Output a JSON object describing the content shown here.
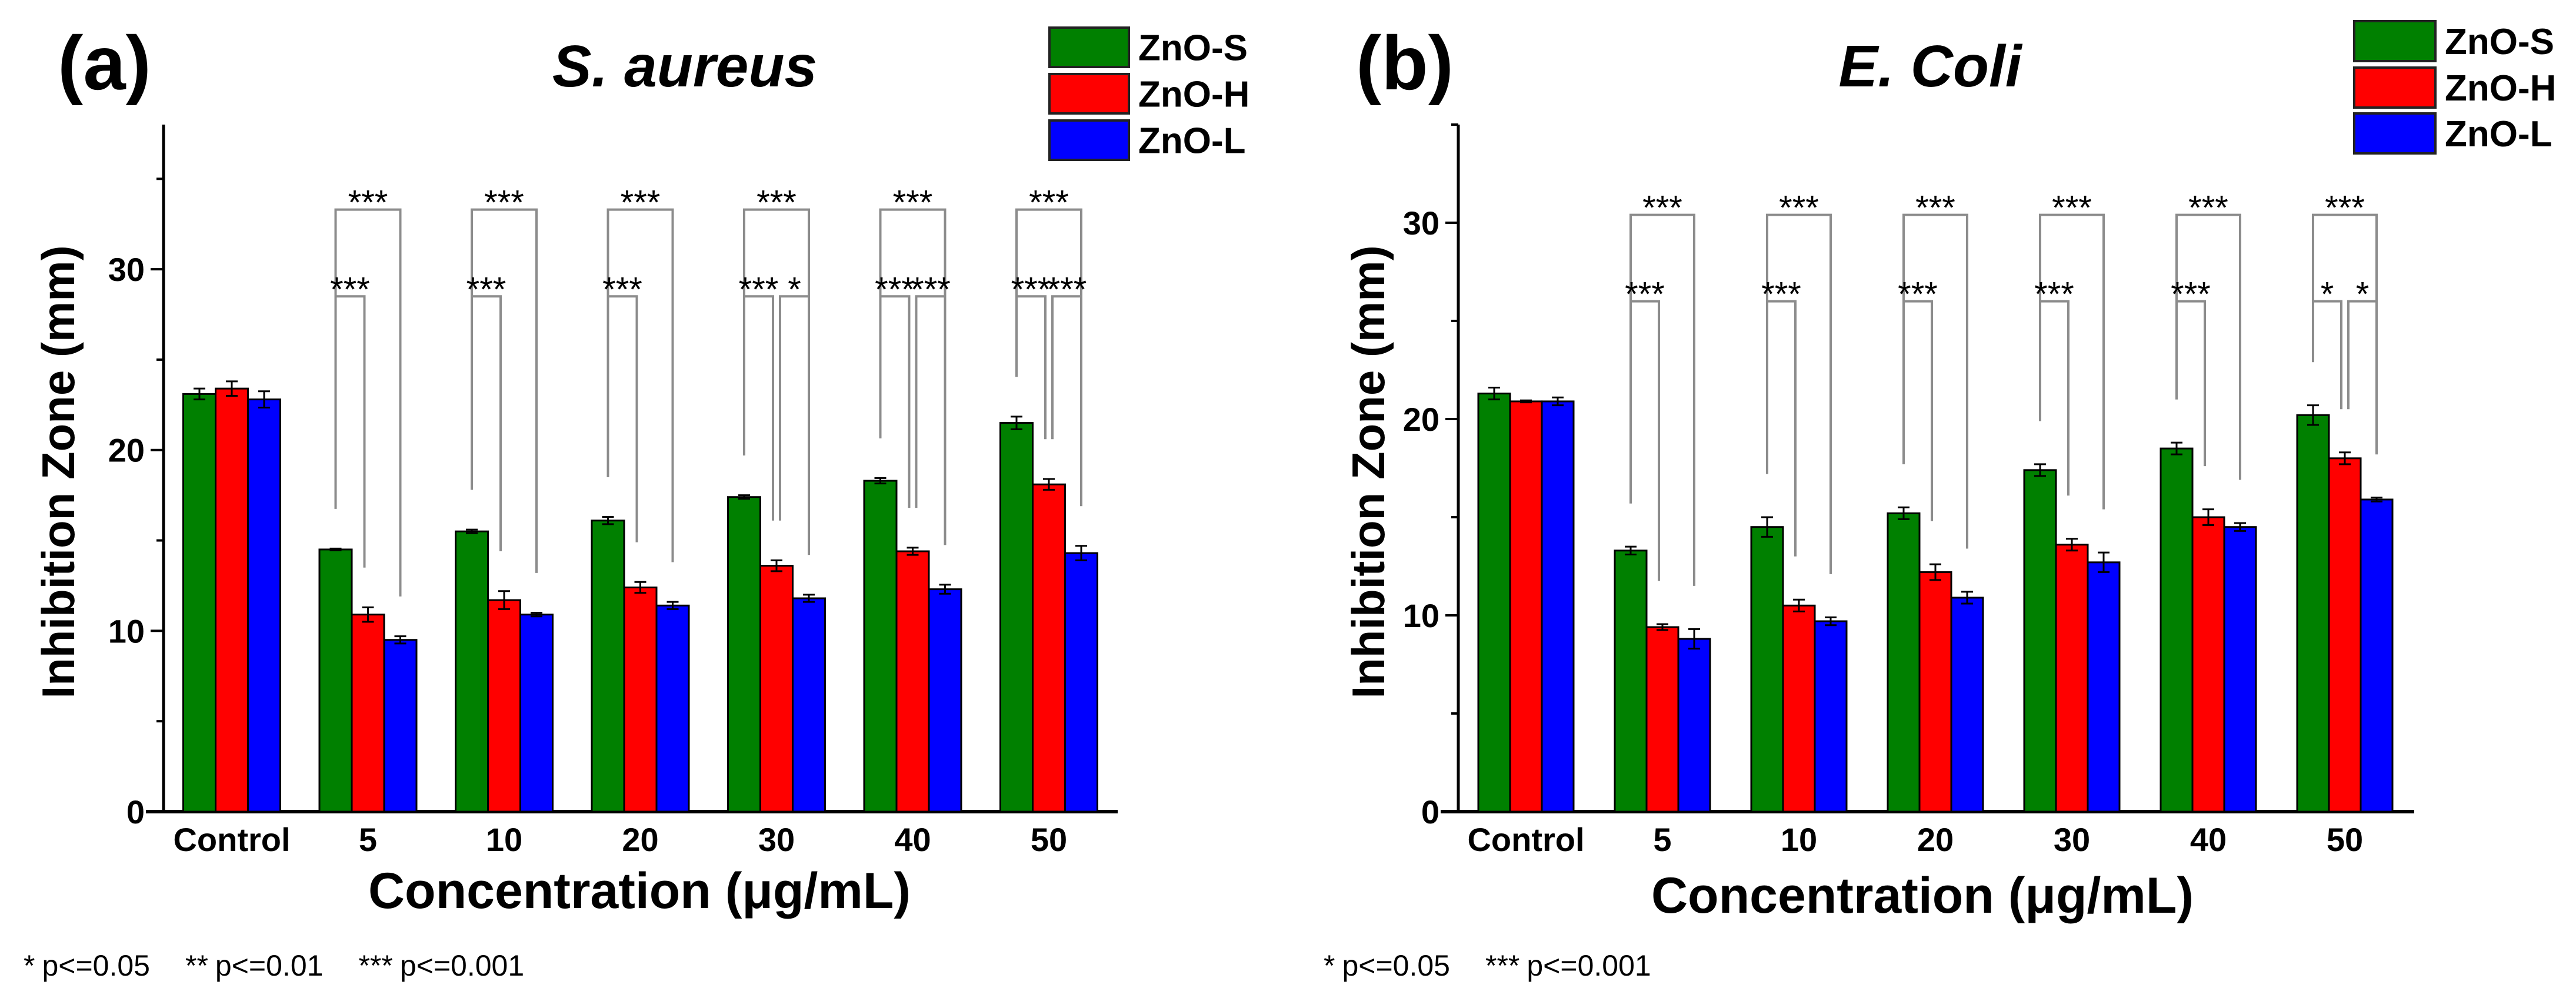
{
  "footnotes": [
    {
      "parts": [
        {
          "stars": "*",
          "label": "p<=0.05"
        },
        {
          "stars": "**",
          "label": "p<=0.01"
        },
        {
          "stars": "***",
          "label": "p<=0.001"
        }
      ]
    },
    {
      "parts": [
        {
          "stars": "*",
          "label": "p<=0.05"
        },
        {
          "stars": "***",
          "label": "p<=0.001"
        }
      ]
    }
  ],
  "chart_data": [
    {
      "type": "bar",
      "panel": "(a)",
      "title": "S. aureus",
      "xlabel": "Concentration (μg/mL)",
      "ylabel": "Inhibition Zone (mm)",
      "ylim": [
        0,
        38
      ],
      "yticks": [
        0,
        10,
        20,
        30
      ],
      "grid": false,
      "legend": "top-right",
      "categories": [
        "Control",
        "5",
        "10",
        "20",
        "30",
        "40",
        "50"
      ],
      "series": [
        {
          "name": "ZnO-S",
          "color": "#008000",
          "values": [
            23.1,
            14.5,
            15.5,
            16.1,
            17.4,
            18.3,
            21.5
          ],
          "errors": [
            0.3,
            0.05,
            0.1,
            0.2,
            0.1,
            0.15,
            0.35
          ]
        },
        {
          "name": "ZnO-H",
          "color": "#ff0000",
          "values": [
            23.4,
            10.9,
            11.7,
            12.4,
            13.6,
            14.4,
            18.1
          ],
          "errors": [
            0.4,
            0.4,
            0.5,
            0.3,
            0.3,
            0.2,
            0.3
          ]
        },
        {
          "name": "ZnO-L",
          "color": "#0000ff",
          "values": [
            22.8,
            9.5,
            10.9,
            11.4,
            11.8,
            12.3,
            14.3
          ],
          "errors": [
            0.45,
            0.2,
            0.1,
            0.2,
            0.2,
            0.25,
            0.4
          ]
        }
      ],
      "significance": [
        {
          "group": 1,
          "pairs": [
            {
              "a": 0,
              "b": 2,
              "level": 1,
              "mark": "***"
            },
            {
              "a": 0,
              "b": 1,
              "level": 2,
              "mark": "***"
            }
          ]
        },
        {
          "group": 2,
          "pairs": [
            {
              "a": 0,
              "b": 2,
              "level": 1,
              "mark": "***"
            },
            {
              "a": 0,
              "b": 1,
              "level": 2,
              "mark": "***"
            }
          ]
        },
        {
          "group": 3,
          "pairs": [
            {
              "a": 0,
              "b": 2,
              "level": 1,
              "mark": "***"
            },
            {
              "a": 0,
              "b": 1,
              "level": 2,
              "mark": "***"
            }
          ]
        },
        {
          "group": 4,
          "pairs": [
            {
              "a": 0,
              "b": 2,
              "level": 1,
              "mark": "***"
            },
            {
              "a": 0,
              "b": 1,
              "level": 2,
              "mark": "***"
            },
            {
              "a": 1,
              "b": 2,
              "level": 2,
              "mark": "*"
            }
          ]
        },
        {
          "group": 5,
          "pairs": [
            {
              "a": 0,
              "b": 2,
              "level": 1,
              "mark": "***"
            },
            {
              "a": 0,
              "b": 1,
              "level": 2,
              "mark": "***"
            },
            {
              "a": 1,
              "b": 2,
              "level": 2,
              "mark": "***"
            }
          ]
        },
        {
          "group": 6,
          "pairs": [
            {
              "a": 0,
              "b": 2,
              "level": 1,
              "mark": "***"
            },
            {
              "a": 0,
              "b": 1,
              "level": 2,
              "mark": "***"
            },
            {
              "a": 1,
              "b": 2,
              "level": 2,
              "mark": "***"
            }
          ]
        }
      ]
    },
    {
      "type": "bar",
      "panel": "(b)",
      "title": "E. Coli",
      "xlabel": "Concentration (μg/mL)",
      "ylabel": "Inhibition Zone (mm)",
      "ylim": [
        0,
        35
      ],
      "yticks": [
        0,
        10,
        20,
        30
      ],
      "grid": false,
      "legend": "top-right",
      "categories": [
        "Control",
        "5",
        "10",
        "20",
        "30",
        "40",
        "50"
      ],
      "series": [
        {
          "name": "ZnO-S",
          "color": "#008000",
          "values": [
            21.3,
            13.3,
            14.5,
            15.2,
            17.4,
            18.5,
            20.2
          ],
          "errors": [
            0.3,
            0.2,
            0.5,
            0.3,
            0.3,
            0.3,
            0.5
          ]
        },
        {
          "name": "ZnO-H",
          "color": "#ff0000",
          "values": [
            20.9,
            9.4,
            10.5,
            12.2,
            13.6,
            15.0,
            18.0
          ],
          "errors": [
            0.05,
            0.15,
            0.3,
            0.4,
            0.3,
            0.4,
            0.3
          ]
        },
        {
          "name": "ZnO-L",
          "color": "#0000ff",
          "values": [
            20.9,
            8.8,
            9.7,
            10.9,
            12.7,
            14.5,
            15.9
          ],
          "errors": [
            0.2,
            0.5,
            0.2,
            0.3,
            0.5,
            0.2,
            0.1
          ]
        }
      ],
      "significance": [
        {
          "group": 1,
          "pairs": [
            {
              "a": 0,
              "b": 2,
              "level": 1,
              "mark": "***"
            },
            {
              "a": 0,
              "b": 1,
              "level": 2,
              "mark": "***"
            }
          ]
        },
        {
          "group": 2,
          "pairs": [
            {
              "a": 0,
              "b": 2,
              "level": 1,
              "mark": "***"
            },
            {
              "a": 0,
              "b": 1,
              "level": 2,
              "mark": "***"
            }
          ]
        },
        {
          "group": 3,
          "pairs": [
            {
              "a": 0,
              "b": 2,
              "level": 1,
              "mark": "***"
            },
            {
              "a": 0,
              "b": 1,
              "level": 2,
              "mark": "***"
            }
          ]
        },
        {
          "group": 4,
          "pairs": [
            {
              "a": 0,
              "b": 2,
              "level": 1,
              "mark": "***"
            },
            {
              "a": 0,
              "b": 1,
              "level": 2,
              "mark": "***"
            }
          ]
        },
        {
          "group": 5,
          "pairs": [
            {
              "a": 0,
              "b": 2,
              "level": 1,
              "mark": "***"
            },
            {
              "a": 0,
              "b": 1,
              "level": 2,
              "mark": "***"
            }
          ]
        },
        {
          "group": 6,
          "pairs": [
            {
              "a": 0,
              "b": 2,
              "level": 1,
              "mark": "***"
            },
            {
              "a": 0,
              "b": 1,
              "level": 2,
              "mark": "*"
            },
            {
              "a": 1,
              "b": 2,
              "level": 2,
              "mark": "*"
            }
          ]
        }
      ]
    }
  ]
}
